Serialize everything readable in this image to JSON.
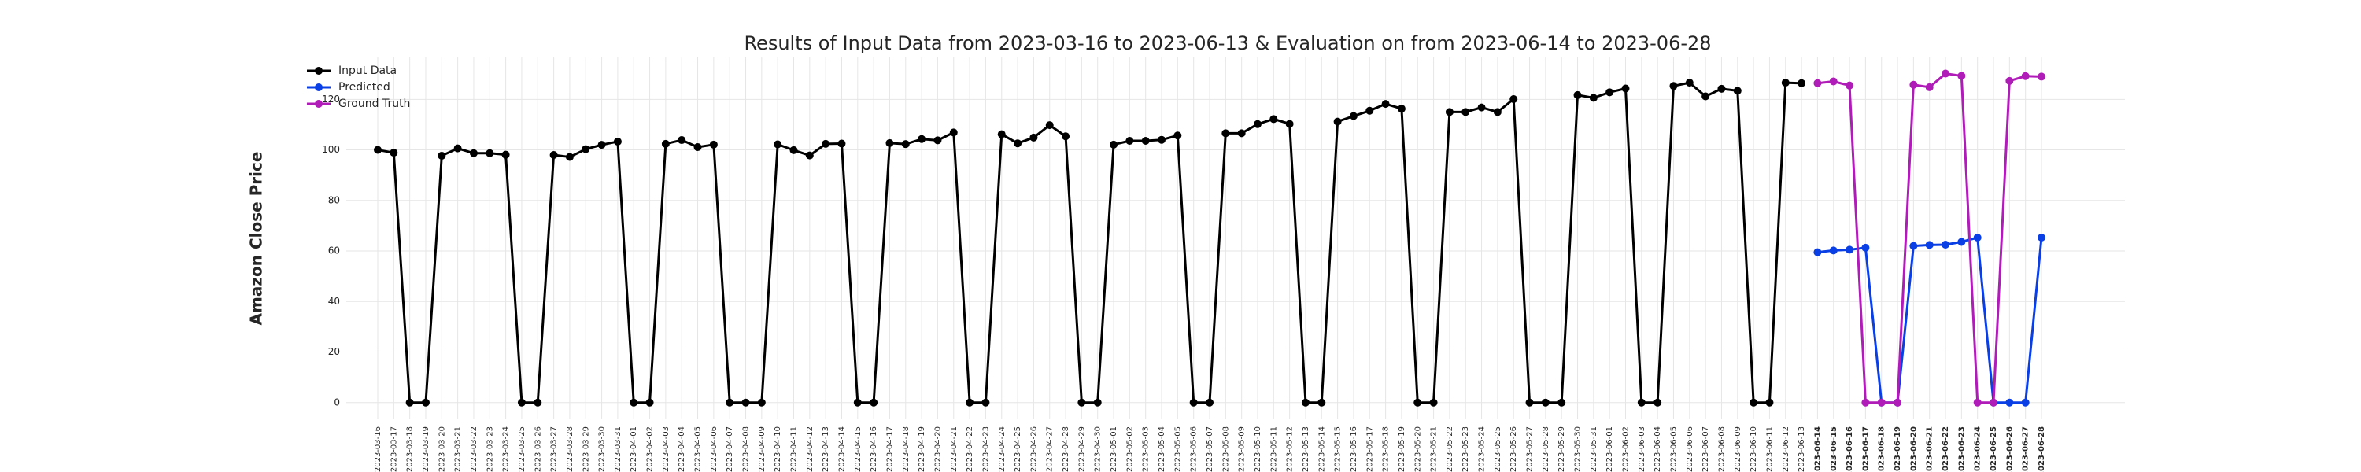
{
  "chart_data": {
    "type": "line",
    "title": "Results of Input Data from 2023-03-16 to 2023-06-13 & Evaluation on from 2023-06-14 to 2023-06-28",
    "ylabel": "Amazon Close Price",
    "x": [
      "2023-03-16",
      "2023-03-17",
      "2023-03-18",
      "2023-03-19",
      "2023-03-20",
      "2023-03-21",
      "2023-03-22",
      "2023-03-23",
      "2023-03-24",
      "2023-03-25",
      "2023-03-26",
      "2023-03-27",
      "2023-03-28",
      "2023-03-29",
      "2023-03-30",
      "2023-03-31",
      "2023-04-01",
      "2023-04-02",
      "2023-04-03",
      "2023-04-04",
      "2023-04-05",
      "2023-04-06",
      "2023-04-07",
      "2023-04-08",
      "2023-04-09",
      "2023-04-10",
      "2023-04-11",
      "2023-04-12",
      "2023-04-13",
      "2023-04-14",
      "2023-04-15",
      "2023-04-16",
      "2023-04-17",
      "2023-04-18",
      "2023-04-19",
      "2023-04-20",
      "2023-04-21",
      "2023-04-22",
      "2023-04-23",
      "2023-04-24",
      "2023-04-25",
      "2023-04-26",
      "2023-04-27",
      "2023-04-28",
      "2023-04-29",
      "2023-04-30",
      "2023-05-01",
      "2023-05-02",
      "2023-05-03",
      "2023-05-04",
      "2023-05-05",
      "2023-05-06",
      "2023-05-07",
      "2023-05-08",
      "2023-05-09",
      "2023-05-10",
      "2023-05-11",
      "2023-05-12",
      "2023-05-13",
      "2023-05-14",
      "2023-05-15",
      "2023-05-16",
      "2023-05-17",
      "2023-05-18",
      "2023-05-19",
      "2023-05-20",
      "2023-05-21",
      "2023-05-22",
      "2023-05-23",
      "2023-05-24",
      "2023-05-25",
      "2023-05-26",
      "2023-05-27",
      "2023-05-28",
      "2023-05-29",
      "2023-05-30",
      "2023-05-31",
      "2023-06-01",
      "2023-06-02",
      "2023-06-03",
      "2023-06-04",
      "2023-06-05",
      "2023-06-06",
      "2023-06-07",
      "2023-06-08",
      "2023-06-09",
      "2023-06-10",
      "2023-06-11",
      "2023-06-12",
      "2023-06-13",
      "2023-06-14",
      "2023-06-15",
      "2023-06-16",
      "2023-06-17",
      "2023-06-18",
      "2023-06-19",
      "2023-06-20",
      "2023-06-21",
      "2023-06-22",
      "2023-06-23",
      "2023-06-24",
      "2023-06-25",
      "2023-06-26",
      "2023-06-27",
      "2023-06-28"
    ],
    "series": [
      {
        "name": "Input Data",
        "color": "#000000",
        "values": [
          100.0,
          98.9,
          0,
          0,
          97.7,
          100.6,
          98.7,
          98.7,
          98.1,
          0,
          0,
          98.0,
          97.2,
          100.3,
          102.0,
          103.3,
          0,
          0,
          102.4,
          103.9,
          101.1,
          102.1,
          0,
          0,
          0,
          102.2,
          99.9,
          97.8,
          102.4,
          102.5,
          0,
          0,
          102.7,
          102.3,
          104.3,
          103.8,
          106.9,
          0,
          0,
          106.2,
          102.6,
          104.9,
          109.8,
          105.4,
          0,
          0,
          102.1,
          103.6,
          103.6,
          104.0,
          105.7,
          0,
          0,
          106.6,
          106.6,
          110.2,
          112.2,
          110.3,
          0,
          0,
          111.2,
          113.4,
          115.5,
          118.2,
          116.3,
          0,
          0,
          115.0,
          115.0,
          116.8,
          115.0,
          120.1,
          0,
          0,
          0,
          121.7,
          120.6,
          122.8,
          124.3,
          0,
          0,
          125.3,
          126.6,
          121.2,
          124.2,
          123.4,
          0,
          0,
          126.6,
          126.4,
          null,
          null,
          null,
          null,
          null,
          null,
          null,
          null,
          null,
          null,
          null,
          null,
          null,
          null,
          null
        ]
      },
      {
        "name": "Predicted",
        "color": "#0a3fe6",
        "values": [
          null,
          null,
          null,
          null,
          null,
          null,
          null,
          null,
          null,
          null,
          null,
          null,
          null,
          null,
          null,
          null,
          null,
          null,
          null,
          null,
          null,
          null,
          null,
          null,
          null,
          null,
          null,
          null,
          null,
          null,
          null,
          null,
          null,
          null,
          null,
          null,
          null,
          null,
          null,
          null,
          null,
          null,
          null,
          null,
          null,
          null,
          null,
          null,
          null,
          null,
          null,
          null,
          null,
          null,
          null,
          null,
          null,
          null,
          null,
          null,
          null,
          null,
          null,
          null,
          null,
          null,
          null,
          null,
          null,
          null,
          null,
          null,
          null,
          null,
          null,
          null,
          null,
          null,
          null,
          null,
          null,
          null,
          null,
          null,
          null,
          null,
          null,
          null,
          null,
          null,
          59.5,
          60.2,
          60.5,
          61.3,
          0,
          0,
          62.0,
          62.4,
          62.5,
          63.6,
          65.3,
          0,
          0,
          0,
          65.3
        ]
      },
      {
        "name": "Ground Truth",
        "color": "#b01cb8",
        "values": [
          null,
          null,
          null,
          null,
          null,
          null,
          null,
          null,
          null,
          null,
          null,
          null,
          null,
          null,
          null,
          null,
          null,
          null,
          null,
          null,
          null,
          null,
          null,
          null,
          null,
          null,
          null,
          null,
          null,
          null,
          null,
          null,
          null,
          null,
          null,
          null,
          null,
          null,
          null,
          null,
          null,
          null,
          null,
          null,
          null,
          null,
          null,
          null,
          null,
          null,
          null,
          null,
          null,
          null,
          null,
          null,
          null,
          null,
          null,
          null,
          null,
          null,
          null,
          null,
          null,
          null,
          null,
          null,
          null,
          null,
          null,
          null,
          null,
          null,
          null,
          null,
          null,
          null,
          null,
          null,
          null,
          null,
          null,
          null,
          null,
          null,
          null,
          null,
          null,
          null,
          126.4,
          127.1,
          125.5,
          0,
          0,
          0,
          125.8,
          124.8,
          130.2,
          129.3,
          0,
          0,
          127.3,
          129.2,
          129.0
        ]
      }
    ],
    "ylim": [
      -6.3,
      136.6
    ],
    "yticks": [
      0,
      20,
      40,
      60,
      80,
      100,
      120
    ],
    "grid": true,
    "legend": "upper left"
  }
}
